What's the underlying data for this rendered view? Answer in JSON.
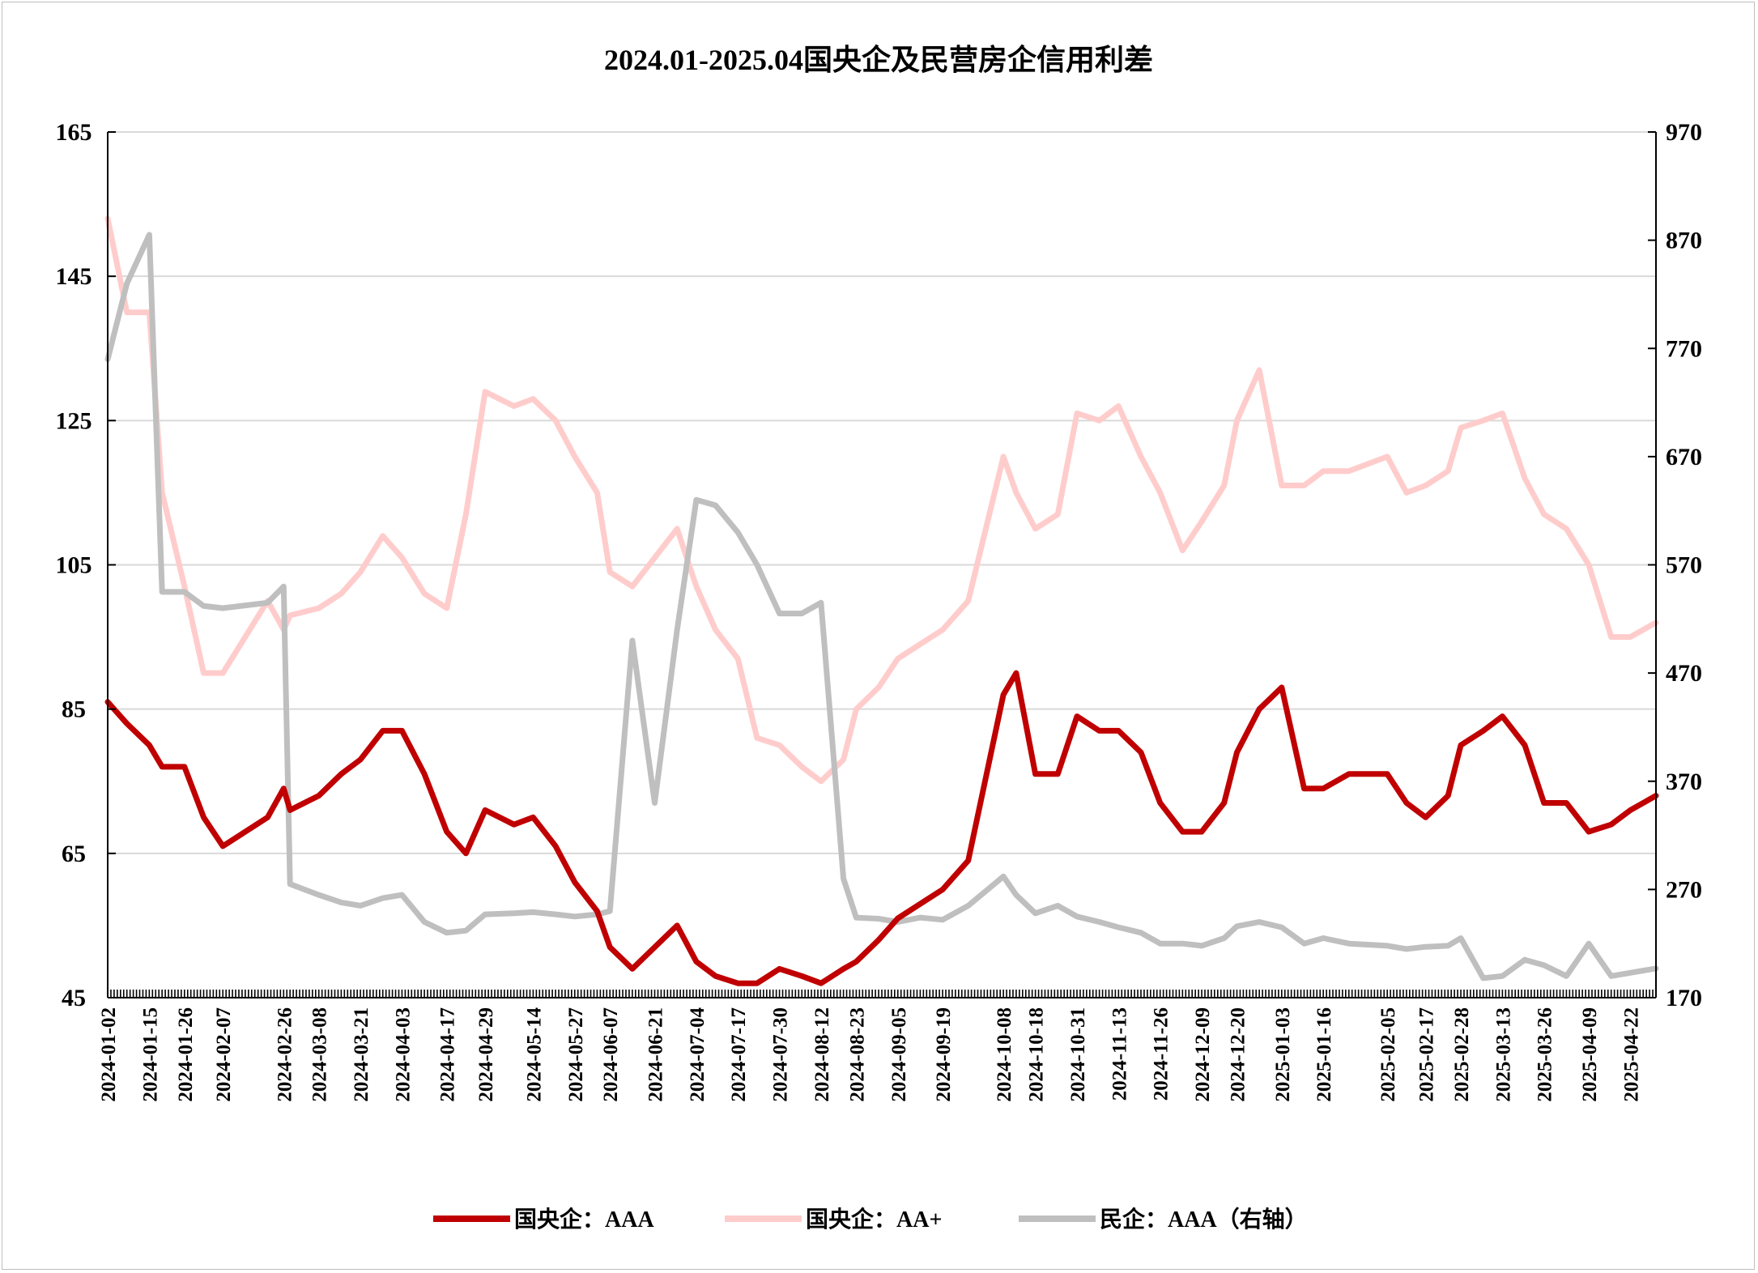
{
  "chart_data": {
    "type": "line",
    "title": "2024.01-2025.04国央企及民营房企信用利差",
    "xlabel": "",
    "ylabel": "",
    "ylim": [
      45,
      165
    ],
    "y_ticks": [
      45,
      65,
      85,
      105,
      125,
      145,
      165
    ],
    "y2lim": [
      170,
      970
    ],
    "y2_ticks": [
      170,
      270,
      370,
      470,
      570,
      670,
      770,
      870,
      970
    ],
    "grid": "horizontal",
    "legend_position": "bottom",
    "x_tick_labels": [
      "2024-01-02",
      "2024-01-15",
      "2024-01-26",
      "2024-02-07",
      "2024-02-26",
      "2024-03-08",
      "2024-03-21",
      "2024-04-03",
      "2024-04-17",
      "2024-04-29",
      "2024-05-14",
      "2024-05-27",
      "2024-06-07",
      "2024-06-21",
      "2024-07-04",
      "2024-07-17",
      "2024-07-30",
      "2024-08-12",
      "2024-08-23",
      "2024-09-05",
      "2024-09-19",
      "2024-10-08",
      "2024-10-18",
      "2024-10-31",
      "2024-11-13",
      "2024-11-26",
      "2024-12-09",
      "2024-12-20",
      "2025-01-03",
      "2025-01-16",
      "2025-02-05",
      "2025-02-17",
      "2025-02-28",
      "2025-03-13",
      "2025-03-26",
      "2025-04-09",
      "2025-04-22"
    ],
    "x": [
      "2024-01-02",
      "2024-01-08",
      "2024-01-15",
      "2024-01-19",
      "2024-01-26",
      "2024-02-01",
      "2024-02-07",
      "2024-02-21",
      "2024-02-26",
      "2024-02-28",
      "2024-03-08",
      "2024-03-15",
      "2024-03-21",
      "2024-03-28",
      "2024-04-03",
      "2024-04-10",
      "2024-04-17",
      "2024-04-23",
      "2024-04-29",
      "2024-05-08",
      "2024-05-14",
      "2024-05-21",
      "2024-05-27",
      "2024-06-03",
      "2024-06-07",
      "2024-06-14",
      "2024-06-21",
      "2024-06-28",
      "2024-07-04",
      "2024-07-10",
      "2024-07-17",
      "2024-07-23",
      "2024-07-30",
      "2024-08-06",
      "2024-08-12",
      "2024-08-19",
      "2024-08-23",
      "2024-08-30",
      "2024-09-05",
      "2024-09-12",
      "2024-09-19",
      "2024-09-27",
      "2024-10-08",
      "2024-10-12",
      "2024-10-18",
      "2024-10-25",
      "2024-10-31",
      "2024-11-07",
      "2024-11-13",
      "2024-11-20",
      "2024-11-26",
      "2024-12-03",
      "2024-12-09",
      "2024-12-16",
      "2024-12-20",
      "2024-12-27",
      "2025-01-03",
      "2025-01-10",
      "2025-01-16",
      "2025-01-24",
      "2025-02-05",
      "2025-02-11",
      "2025-02-17",
      "2025-02-24",
      "2025-02-28",
      "2025-03-07",
      "2025-03-13",
      "2025-03-20",
      "2025-03-26",
      "2025-04-02",
      "2025-04-09",
      "2025-04-16",
      "2025-04-22",
      "2025-04-30"
    ],
    "series": [
      {
        "name": "国央企：AAA",
        "axis": "left",
        "color": "#c00000",
        "values": [
          86,
          83,
          80,
          77,
          77,
          70,
          66,
          70,
          74,
          71,
          73,
          76,
          78,
          82,
          82,
          76,
          68,
          65,
          71,
          69,
          70,
          66,
          61,
          57,
          52,
          49,
          52,
          55,
          50,
          48,
          47,
          47,
          49,
          48,
          47,
          49,
          50,
          53,
          56,
          58,
          60,
          64,
          87,
          90,
          76,
          76,
          84,
          82,
          82,
          79,
          72,
          68,
          68,
          72,
          79,
          85,
          88,
          74,
          74,
          76,
          76,
          72,
          70,
          73,
          80,
          82,
          84,
          80,
          72,
          72,
          68,
          69,
          71,
          73
        ]
      },
      {
        "name": "国央企：AA+",
        "axis": "left",
        "color": "#ffcccc",
        "values": [
          153,
          140,
          140,
          115,
          102,
          90,
          90,
          100,
          96,
          98,
          99,
          101,
          104,
          109,
          106,
          101,
          99,
          112,
          129,
          127,
          128,
          125,
          120,
          115,
          104,
          102,
          106,
          110,
          102,
          96,
          92,
          81,
          80,
          77,
          75,
          78,
          85,
          88,
          92,
          94,
          96,
          100,
          120,
          115,
          110,
          112,
          126,
          125,
          127,
          120,
          115,
          107,
          111,
          116,
          125,
          132,
          116,
          116,
          118,
          118,
          120,
          115,
          116,
          118,
          124,
          125,
          126,
          117,
          112,
          110,
          105,
          95,
          95,
          97
        ]
      },
      {
        "name": "民企：AAA（右轴）",
        "axis": "right",
        "color": "#bfbfbf",
        "values": [
          760,
          830,
          875,
          545,
          545,
          532,
          530,
          535,
          550,
          275,
          265,
          258,
          255,
          262,
          265,
          240,
          230,
          232,
          247,
          248,
          249,
          247,
          245,
          247,
          250,
          500,
          350,
          510,
          630,
          625,
          600,
          570,
          525,
          525,
          535,
          280,
          244,
          243,
          240,
          244,
          242,
          255,
          282,
          265,
          248,
          255,
          245,
          240,
          235,
          230,
          220,
          220,
          218,
          225,
          236,
          240,
          235,
          220,
          225,
          220,
          218,
          215,
          217,
          218,
          225,
          188,
          190,
          205,
          200,
          190,
          220,
          190,
          193,
          197
        ]
      }
    ]
  }
}
